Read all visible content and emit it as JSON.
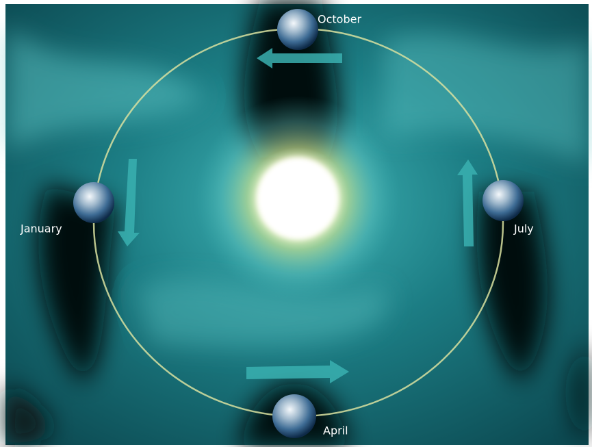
{
  "nodes": [
    {
      "label": "October"
    },
    {
      "label": "January"
    },
    {
      "label": "July"
    },
    {
      "label": "April"
    }
  ]
}
